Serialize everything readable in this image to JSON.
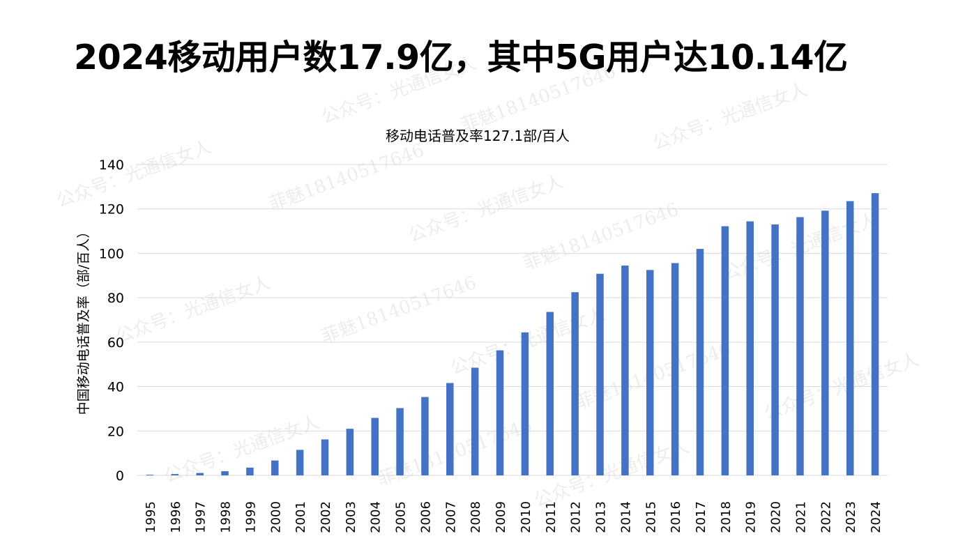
{
  "headline": "2024移动用户数17.9亿，其中5G用户达10.14亿",
  "watermarks": {
    "account": "公众号：光通信女人",
    "contact": "菲魅18140517646"
  },
  "colors": {
    "bar": "#4472C4",
    "grid": "#D9D9D9",
    "text": "#000000",
    "axis_text": "#333333"
  },
  "chart_data": {
    "type": "bar",
    "title": "移动电话普及率127.1部/百人",
    "xlabel": "",
    "ylabel": "中国移动电话普及率（部/百人）",
    "ylim": [
      0,
      140
    ],
    "yticks": [
      0,
      20,
      40,
      60,
      80,
      100,
      120,
      140
    ],
    "grid": true,
    "legend": "none",
    "categories": [
      "1995",
      "1996",
      "1997",
      "1998",
      "1999",
      "2000",
      "2001",
      "2002",
      "2003",
      "2004",
      "2005",
      "2006",
      "2007",
      "2008",
      "2009",
      "2010",
      "2011",
      "2012",
      "2013",
      "2014",
      "2015",
      "2016",
      "2017",
      "2018",
      "2019",
      "2020",
      "2021",
      "2022",
      "2023",
      "2024"
    ],
    "values": [
      0.3,
      0.6,
      1.1,
      1.9,
      3.5,
      6.7,
      11.5,
      16.2,
      21.0,
      25.9,
      30.3,
      35.3,
      41.6,
      48.5,
      56.3,
      64.4,
      73.6,
      82.5,
      90.8,
      94.5,
      92.5,
      95.6,
      102.0,
      112.2,
      114.4,
      113.0,
      116.3,
      119.2,
      123.5,
      127.1
    ]
  }
}
